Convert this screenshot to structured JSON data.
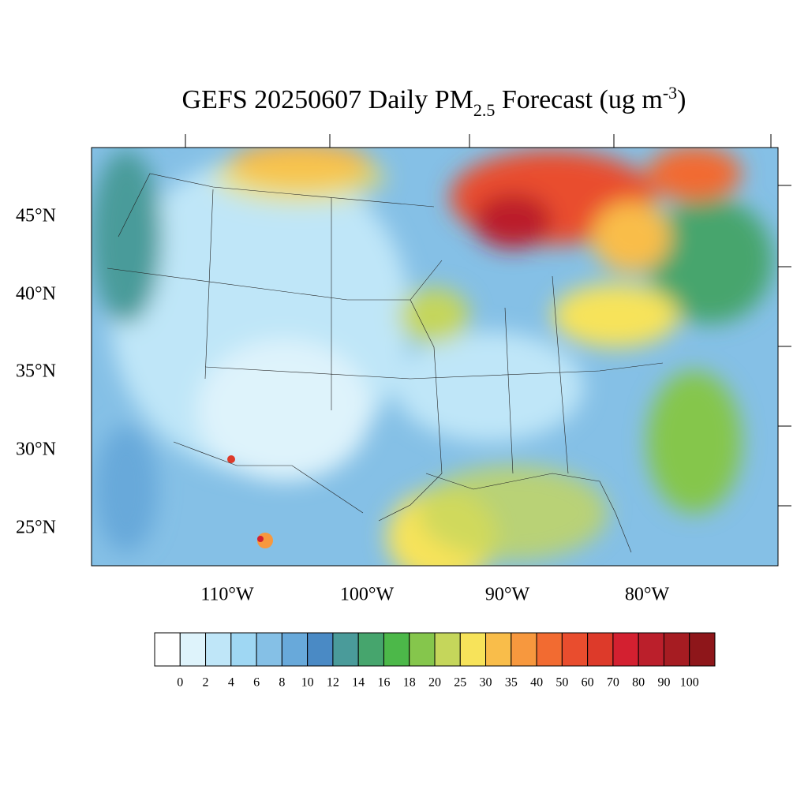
{
  "title": {
    "main": "GEFS 20250607 Daily PM",
    "sub": "2.5",
    "mid": " Forecast (ug m",
    "sup": "-3",
    "end": ")"
  },
  "lat_labels": [
    "45°N",
    "40°N",
    "35°N",
    "30°N",
    "25°N"
  ],
  "lon_labels": [
    "110°W",
    "100°W",
    "90°W",
    "80°W"
  ],
  "legend": {
    "levels": [
      0,
      2,
      4,
      6,
      8,
      10,
      12,
      14,
      16,
      18,
      20,
      25,
      30,
      35,
      40,
      50,
      60,
      70,
      80,
      90,
      100
    ],
    "colors": [
      "#ffffff",
      "#def3fb",
      "#bfe6f8",
      "#9fd7f3",
      "#85c0e6",
      "#68a9da",
      "#4a8ac5",
      "#4a9b9a",
      "#46a56d",
      "#4cb849",
      "#85c64c",
      "#c5d65b",
      "#f7e35a",
      "#f9bd4a",
      "#f7983e",
      "#f26b31",
      "#e94d2e",
      "#dd3a2a",
      "#d32030",
      "#bb1f2b",
      "#a61c22",
      "#8e161a"
    ]
  }
}
